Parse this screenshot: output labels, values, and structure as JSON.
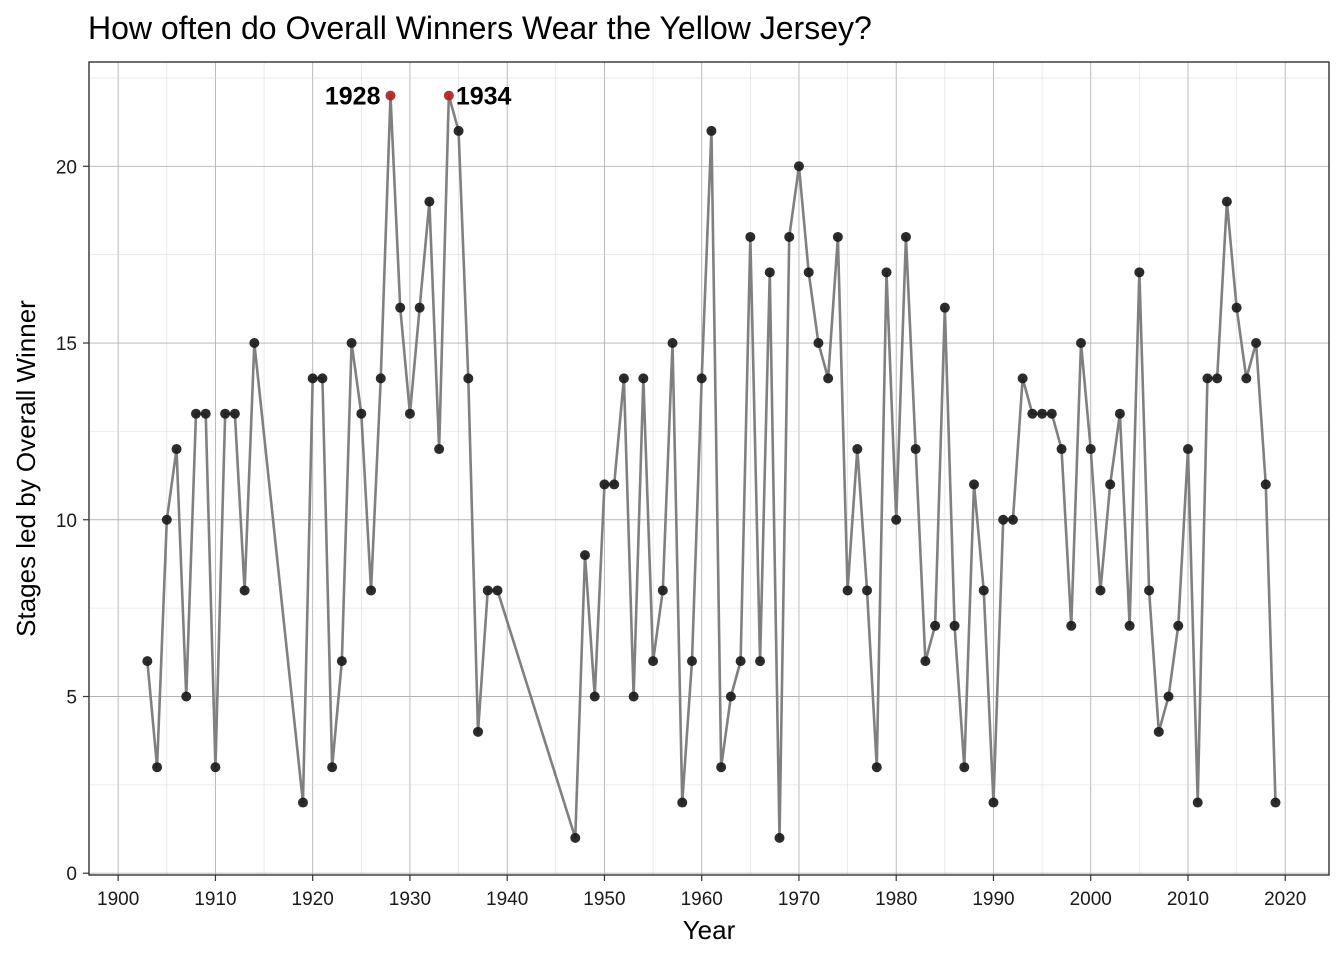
{
  "chart_data": {
    "type": "line",
    "title": "How often do Overall Winners Wear the Yellow Jersey?",
    "xlabel": "Year",
    "ylabel": "Stages led by Overall Winner",
    "xlim": [
      1897,
      2024.5
    ],
    "ylim": [
      -0.05,
      22.95
    ],
    "x_ticks": [
      1900,
      1910,
      1920,
      1930,
      1940,
      1950,
      1960,
      1970,
      1980,
      1990,
      2000,
      2010,
      2020
    ],
    "y_ticks": [
      0,
      5,
      10,
      15,
      20
    ],
    "grid": true,
    "colors": {
      "line": "#808080",
      "point": "#1a1a1a",
      "highlight": "#b22222"
    },
    "x": [
      1903,
      1904,
      1905,
      1906,
      1907,
      1908,
      1909,
      1910,
      1911,
      1912,
      1913,
      1914,
      1919,
      1920,
      1921,
      1922,
      1923,
      1924,
      1925,
      1926,
      1927,
      1928,
      1929,
      1930,
      1931,
      1932,
      1933,
      1934,
      1935,
      1936,
      1937,
      1938,
      1939,
      1947,
      1948,
      1949,
      1950,
      1951,
      1952,
      1953,
      1954,
      1955,
      1956,
      1957,
      1958,
      1959,
      1960,
      1961,
      1962,
      1963,
      1964,
      1965,
      1966,
      1967,
      1968,
      1969,
      1970,
      1971,
      1972,
      1973,
      1974,
      1975,
      1976,
      1977,
      1978,
      1979,
      1980,
      1981,
      1982,
      1983,
      1984,
      1985,
      1986,
      1987,
      1988,
      1989,
      1990,
      1991,
      1992,
      1993,
      1994,
      1995,
      1996,
      1997,
      1998,
      1999,
      2000,
      2001,
      2002,
      2003,
      2004,
      2005,
      2006,
      2007,
      2008,
      2009,
      2010,
      2011,
      2012,
      2013,
      2014,
      2015,
      2016,
      2017,
      2018,
      2019
    ],
    "y": [
      6,
      3,
      10,
      12,
      5,
      13,
      13,
      3,
      13,
      13,
      8,
      15,
      2,
      14,
      14,
      3,
      6,
      15,
      13,
      8,
      14,
      22,
      16,
      13,
      16,
      19,
      12,
      22,
      21,
      14,
      4,
      8,
      8,
      1,
      9,
      5,
      11,
      11,
      14,
      5,
      14,
      6,
      8,
      15,
      2,
      6,
      14,
      21,
      3,
      5,
      6,
      18,
      6,
      17,
      1,
      18,
      20,
      17,
      15,
      14,
      18,
      8,
      12,
      8,
      3,
      17,
      10,
      18,
      12,
      6,
      7,
      16,
      7,
      3,
      11,
      8,
      2,
      10,
      10,
      14,
      13,
      13,
      13,
      12,
      7,
      15,
      12,
      8,
      11,
      13,
      7,
      17,
      8,
      4,
      5,
      7,
      12,
      2,
      14,
      14,
      19,
      16,
      14,
      15,
      11,
      2
    ],
    "annotations": [
      {
        "year": 1928,
        "value": 22,
        "label": "1928",
        "side": "left"
      },
      {
        "year": 1934,
        "value": 22,
        "label": "1934",
        "side": "right"
      }
    ]
  }
}
